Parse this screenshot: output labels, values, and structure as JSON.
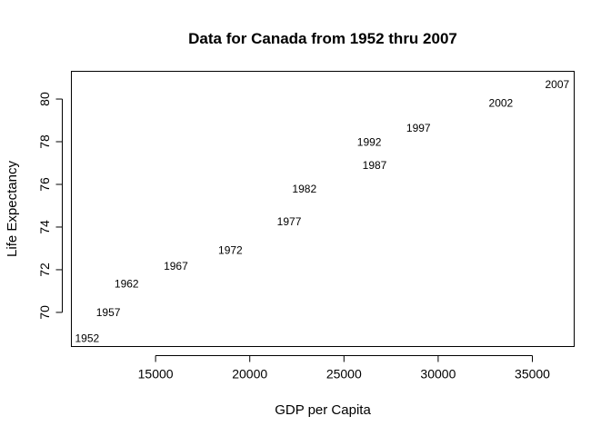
{
  "chart_data": {
    "type": "scatter",
    "title": "Data for Canada from 1952 thru 2007",
    "xlabel": "GDP per Capita",
    "ylabel": "Life Expectancy",
    "xlim": [
      10530,
      37220
    ],
    "ylim": [
      68.4,
      81.3
    ],
    "xticks": [
      15000,
      20000,
      25000,
      30000,
      35000
    ],
    "yticks": [
      70,
      72,
      74,
      76,
      78,
      80
    ],
    "grid": false,
    "legend": "none",
    "marker": "text-label",
    "points": [
      {
        "label": "1952",
        "x": 11367,
        "y": 68.75
      },
      {
        "label": "1957",
        "x": 12490,
        "y": 69.96
      },
      {
        "label": "1962",
        "x": 13462,
        "y": 71.3
      },
      {
        "label": "1967",
        "x": 16077,
        "y": 72.13
      },
      {
        "label": "1972",
        "x": 18971,
        "y": 72.88
      },
      {
        "label": "1977",
        "x": 22091,
        "y": 74.21
      },
      {
        "label": "1982",
        "x": 22899,
        "y": 75.76
      },
      {
        "label": "1987",
        "x": 26627,
        "y": 76.86
      },
      {
        "label": "1992",
        "x": 26343,
        "y": 77.95
      },
      {
        "label": "1997",
        "x": 28955,
        "y": 78.61
      },
      {
        "label": "2002",
        "x": 33329,
        "y": 79.77
      },
      {
        "label": "2007",
        "x": 36319,
        "y": 80.65
      }
    ]
  }
}
